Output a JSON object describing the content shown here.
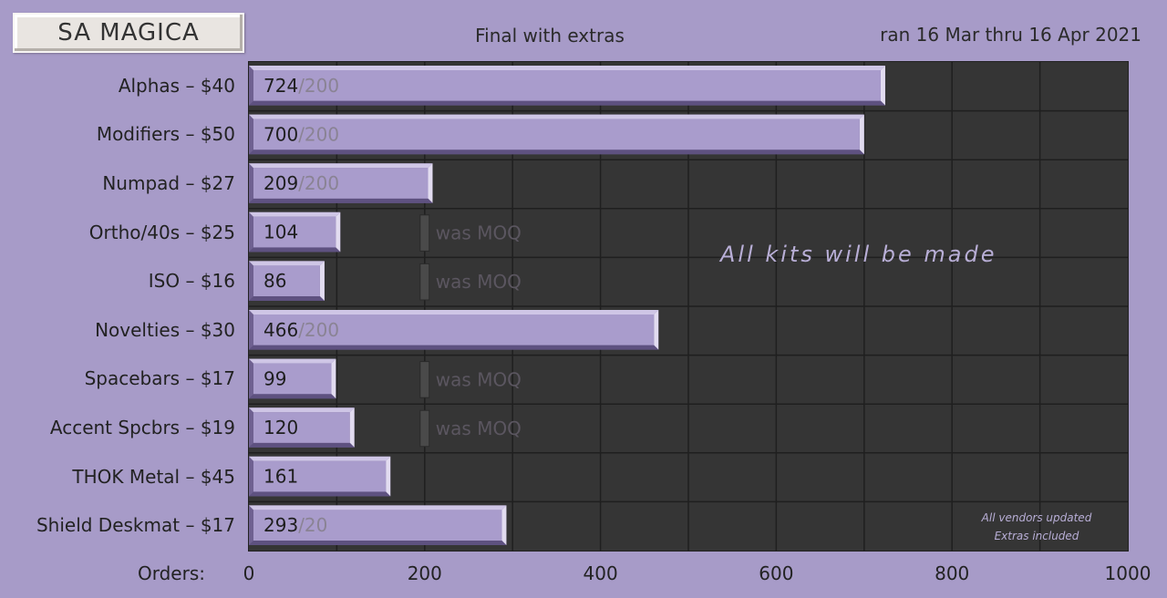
{
  "header": {
    "title": "SA MAGICA",
    "subtitle": "Final with extras",
    "date_range": "ran 16 Mar thru 16 Apr 2021"
  },
  "chart_data": {
    "type": "bar",
    "orientation": "horizontal",
    "categories": [
      "Alphas – $40",
      "Modifiers – $50",
      "Numpad – $27",
      "Ortho/40s – $25",
      "ISO – $16",
      "Novelties – $30",
      "Spacebars – $17",
      "Accent Spcbrs – $19",
      "THOK Metal – $45",
      "Shield Deskmat – $17"
    ],
    "values": [
      724,
      700,
      209,
      104,
      86,
      466,
      99,
      120,
      161,
      293
    ],
    "moq_labels": [
      "/200",
      "/200",
      "/200",
      "",
      "",
      "/200",
      "",
      "",
      "",
      "/20"
    ],
    "former_moq": [
      null,
      null,
      null,
      200,
      200,
      null,
      200,
      200,
      null,
      null
    ],
    "former_moq_label": "was MOQ",
    "xlabel": "Orders:",
    "xlim": [
      0,
      1000
    ],
    "xticks": [
      0,
      200,
      400,
      600,
      800,
      1000
    ],
    "grid": true,
    "annotation": "All kits will be made",
    "notes": [
      "All vendors updated",
      "Extras included"
    ],
    "colors": {
      "background": "#a79bc8",
      "plot_background": "#353535",
      "bar_fill": "#a99ccc",
      "bar_dark": "#6f6191",
      "bar_light": "#cfc6e6",
      "grid": "#1f1f1f",
      "moq_text": "#8a8394",
      "ghost_text": "#5b5660",
      "annotation": "#b8aed6"
    }
  }
}
